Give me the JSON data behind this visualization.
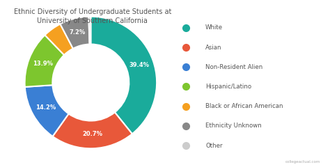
{
  "title": "Ethnic Diversity of Undergraduate Students at\nUniversity of Southern California",
  "labels": [
    "White",
    "Asian",
    "Non-Resident Alien",
    "Hispanic/Latino",
    "Black or African American",
    "Ethnicity Unknown",
    "Other"
  ],
  "values": [
    39.4,
    20.7,
    14.2,
    13.9,
    4.6,
    7.2,
    0.5
  ],
  "colors": [
    "#1aab9b",
    "#e8583a",
    "#3a7fd4",
    "#7dc62e",
    "#f5a020",
    "#888888",
    "#cccccc"
  ],
  "pct_labels": [
    "39.4%",
    "20.7%",
    "14.2%",
    "13.9%",
    "",
    "7.2%",
    ""
  ],
  "title_fontsize": 7,
  "background_color": "#ffffff",
  "text_color": "#555555"
}
